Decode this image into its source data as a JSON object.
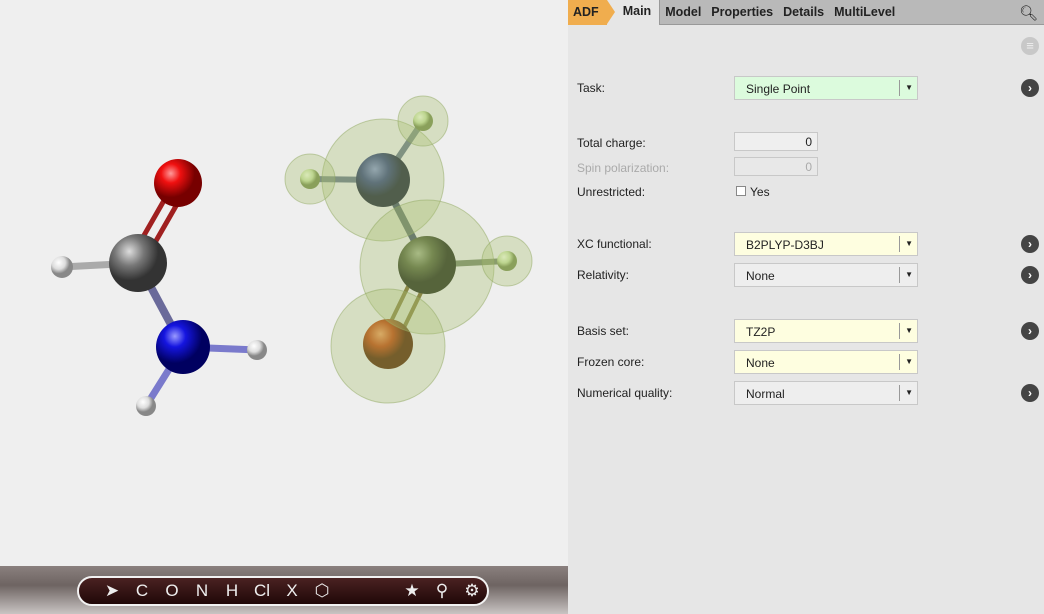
{
  "tabs": [
    {
      "label": "ADF"
    },
    {
      "label": "Main"
    },
    {
      "label": "Model"
    },
    {
      "label": "Properties"
    },
    {
      "label": "Details"
    },
    {
      "label": "MultiLevel"
    }
  ],
  "accent": "#f0ad4e",
  "form": {
    "task": {
      "label": "Task:",
      "value": "Single Point"
    },
    "total_charge": {
      "label": "Total charge:",
      "value": "0"
    },
    "spin_polarization": {
      "label": "Spin polarization:",
      "value": "0"
    },
    "unrestricted": {
      "label": "Unrestricted:",
      "option": "Yes",
      "checked": false
    },
    "xc": {
      "label": "XC functional:",
      "value": "B2PLYP-D3BJ"
    },
    "relativity": {
      "label": "Relativity:",
      "value": "None"
    },
    "basis": {
      "label": "Basis set:",
      "value": "TZ2P"
    },
    "frozen": {
      "label": "Frozen core:",
      "value": "None"
    },
    "quality": {
      "label": "Numerical quality:",
      "value": "Normal"
    }
  },
  "toolbar": {
    "items": [
      "C",
      "O",
      "N",
      "H",
      "Cl",
      "X"
    ]
  }
}
